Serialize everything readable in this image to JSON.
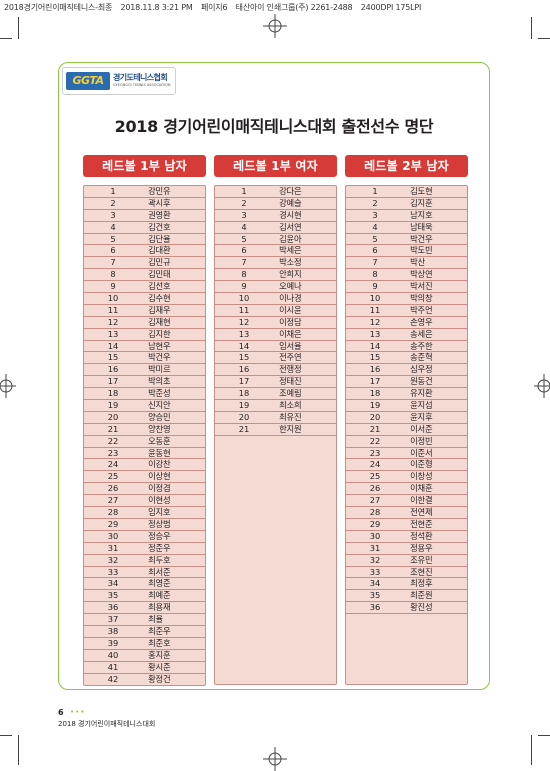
{
  "print_header": {
    "file": "2018경기어린이매직테니스-최종",
    "datetime": "2018.11.8 3:21 PM",
    "page": "페이지6",
    "printer": "태산아이 인쇄그룹(주) 2261-2488",
    "resolution": "2400DPI 175LPI"
  },
  "logo": {
    "mark": "GGTA",
    "name": "경기도테니스협회",
    "subtitle": "GYEONGGI TENNIS ASSOCIATION"
  },
  "title": "2018 경기어린이매직테니스대회 출전선수 명단",
  "columns": [
    {
      "header": "레드볼 1부 남자",
      "players": [
        {
          "no": "1",
          "name": "강민유"
        },
        {
          "no": "2",
          "name": "곽시후"
        },
        {
          "no": "3",
          "name": "권영환"
        },
        {
          "no": "4",
          "name": "김건호"
        },
        {
          "no": "5",
          "name": "김단율"
        },
        {
          "no": "6",
          "name": "김대환"
        },
        {
          "no": "7",
          "name": "김민규"
        },
        {
          "no": "8",
          "name": "김민태"
        },
        {
          "no": "9",
          "name": "김선호"
        },
        {
          "no": "10",
          "name": "김수현"
        },
        {
          "no": "11",
          "name": "김재우"
        },
        {
          "no": "12",
          "name": "김재현"
        },
        {
          "no": "13",
          "name": "김지한"
        },
        {
          "no": "14",
          "name": "남현우"
        },
        {
          "no": "15",
          "name": "박건우"
        },
        {
          "no": "16",
          "name": "박미르"
        },
        {
          "no": "17",
          "name": "박의초"
        },
        {
          "no": "18",
          "name": "박준성"
        },
        {
          "no": "19",
          "name": "신지안"
        },
        {
          "no": "20",
          "name": "양승민"
        },
        {
          "no": "21",
          "name": "양찬영"
        },
        {
          "no": "22",
          "name": "오동훈"
        },
        {
          "no": "23",
          "name": "윤동현"
        },
        {
          "no": "24",
          "name": "이강찬"
        },
        {
          "no": "25",
          "name": "이상현"
        },
        {
          "no": "26",
          "name": "이정겸"
        },
        {
          "no": "27",
          "name": "이현성"
        },
        {
          "no": "28",
          "name": "임지호"
        },
        {
          "no": "29",
          "name": "정상범"
        },
        {
          "no": "30",
          "name": "정승우"
        },
        {
          "no": "31",
          "name": "정준우"
        },
        {
          "no": "32",
          "name": "최두호"
        },
        {
          "no": "33",
          "name": "최서준"
        },
        {
          "no": "34",
          "name": "최영준"
        },
        {
          "no": "35",
          "name": "최예준"
        },
        {
          "no": "36",
          "name": "최용재"
        },
        {
          "no": "37",
          "name": "최율"
        },
        {
          "no": "38",
          "name": "최준우"
        },
        {
          "no": "39",
          "name": "최준호"
        },
        {
          "no": "40",
          "name": "홍지훈"
        },
        {
          "no": "41",
          "name": "황시준"
        },
        {
          "no": "42",
          "name": "황정건"
        }
      ]
    },
    {
      "header": "레드볼 1부 여자",
      "players": [
        {
          "no": "1",
          "name": "강다은"
        },
        {
          "no": "2",
          "name": "강예슬"
        },
        {
          "no": "3",
          "name": "경시현"
        },
        {
          "no": "4",
          "name": "김서연"
        },
        {
          "no": "5",
          "name": "김윤아"
        },
        {
          "no": "6",
          "name": "박세은"
        },
        {
          "no": "7",
          "name": "박소정"
        },
        {
          "no": "8",
          "name": "안희지"
        },
        {
          "no": "9",
          "name": "오예나"
        },
        {
          "no": "10",
          "name": "이나경"
        },
        {
          "no": "11",
          "name": "이시윤"
        },
        {
          "no": "12",
          "name": "이정담"
        },
        {
          "no": "13",
          "name": "이채은"
        },
        {
          "no": "14",
          "name": "임서율"
        },
        {
          "no": "15",
          "name": "전주연"
        },
        {
          "no": "16",
          "name": "전행정"
        },
        {
          "no": "17",
          "name": "정태진"
        },
        {
          "no": "18",
          "name": "조예림"
        },
        {
          "no": "19",
          "name": "최소희"
        },
        {
          "no": "20",
          "name": "최유진"
        },
        {
          "no": "21",
          "name": "한지원"
        }
      ]
    },
    {
      "header": "레드볼 2부 남자",
      "players": [
        {
          "no": "1",
          "name": "김도현"
        },
        {
          "no": "2",
          "name": "김지훈"
        },
        {
          "no": "3",
          "name": "남지호"
        },
        {
          "no": "4",
          "name": "남태욱"
        },
        {
          "no": "5",
          "name": "박건우"
        },
        {
          "no": "6",
          "name": "박도빈"
        },
        {
          "no": "7",
          "name": "박산"
        },
        {
          "no": "8",
          "name": "박상연"
        },
        {
          "no": "9",
          "name": "박서진"
        },
        {
          "no": "10",
          "name": "박의창"
        },
        {
          "no": "11",
          "name": "박주언"
        },
        {
          "no": "12",
          "name": "손영우"
        },
        {
          "no": "13",
          "name": "송세은"
        },
        {
          "no": "14",
          "name": "송주한"
        },
        {
          "no": "15",
          "name": "송준혁"
        },
        {
          "no": "16",
          "name": "심우정"
        },
        {
          "no": "17",
          "name": "원동건"
        },
        {
          "no": "18",
          "name": "유지환"
        },
        {
          "no": "19",
          "name": "윤지섭"
        },
        {
          "no": "20",
          "name": "윤지후"
        },
        {
          "no": "21",
          "name": "이서준"
        },
        {
          "no": "22",
          "name": "이정빈"
        },
        {
          "no": "23",
          "name": "이준서"
        },
        {
          "no": "24",
          "name": "이준형"
        },
        {
          "no": "25",
          "name": "이창성"
        },
        {
          "no": "26",
          "name": "이채훈"
        },
        {
          "no": "27",
          "name": "이한결"
        },
        {
          "no": "28",
          "name": "전연제"
        },
        {
          "no": "29",
          "name": "전현준"
        },
        {
          "no": "30",
          "name": "정석환"
        },
        {
          "no": "31",
          "name": "정용우"
        },
        {
          "no": "32",
          "name": "조유민"
        },
        {
          "no": "33",
          "name": "조현진"
        },
        {
          "no": "34",
          "name": "최정후"
        },
        {
          "no": "35",
          "name": "최준원"
        },
        {
          "no": "36",
          "name": "황진성"
        }
      ]
    }
  ],
  "footer": {
    "page_number": "6",
    "dots": "•••",
    "text": "2018 경기어린이매직테니스대회"
  },
  "colors": {
    "header_red": "#d73b38",
    "list_pink": "#f5dad3",
    "panel_border_green": "#8dc63f"
  }
}
